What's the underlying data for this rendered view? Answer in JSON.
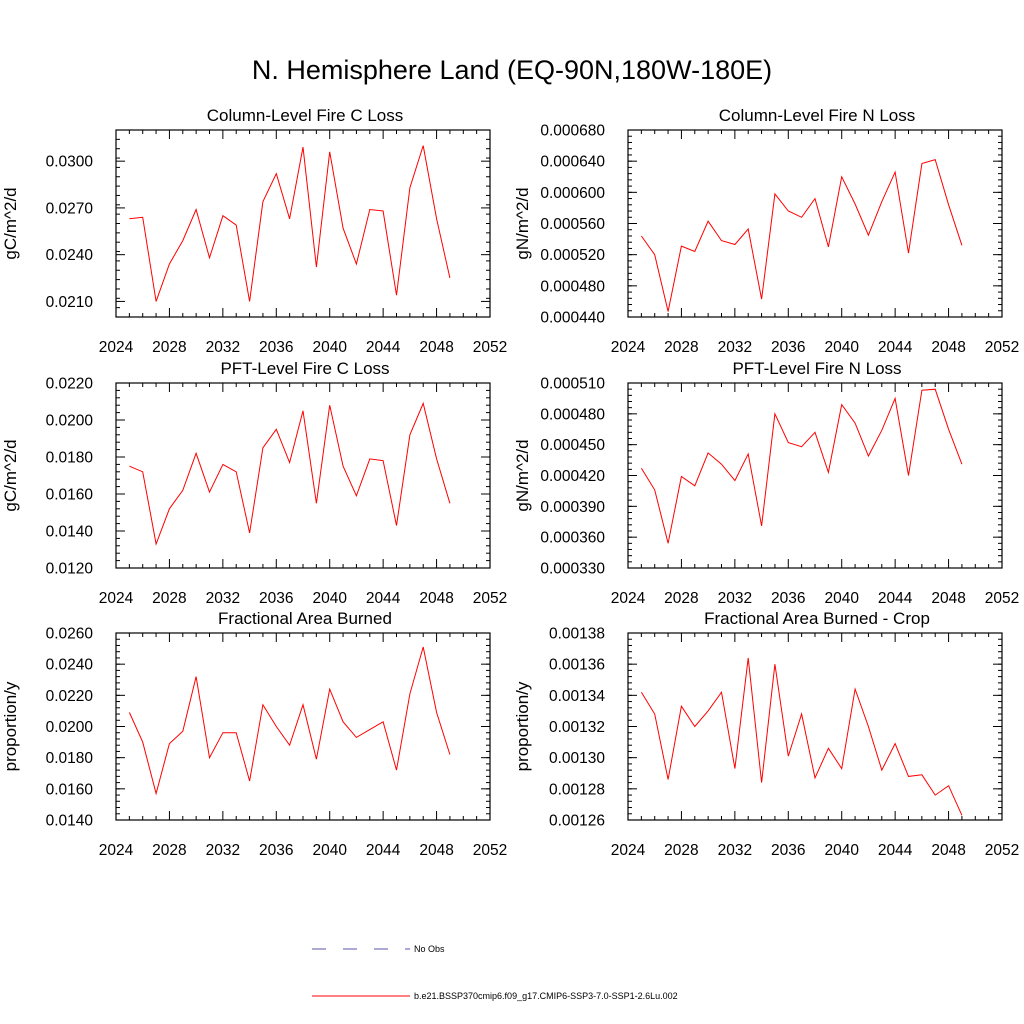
{
  "page": {
    "title": "N. Hemisphere Land (EQ-90N,180W-180E)"
  },
  "chart_data": [
    {
      "type": "line",
      "title": "Column-Level Fire C Loss",
      "ylabel": "gC/m^2/d",
      "xlim": [
        2024,
        2052
      ],
      "xticks": [
        "2024",
        "2028",
        "2032",
        "2036",
        "2040",
        "2044",
        "2048",
        "2052"
      ],
      "ylim": [
        0.02,
        0.032
      ],
      "yticks": [
        "0.0210",
        "0.0240",
        "0.0270",
        "0.0300"
      ],
      "series": [
        {
          "color": "#ff0000",
          "x": [
            2025,
            2026,
            2027,
            2028,
            2029,
            2030,
            2031,
            2032,
            2033,
            2034,
            2035,
            2036,
            2037,
            2038,
            2039,
            2040,
            2041,
            2042,
            2043,
            2044,
            2045,
            2046,
            2047,
            2048,
            2049
          ],
          "values": [
            0.0263,
            0.0264,
            0.021,
            0.0234,
            0.0249,
            0.0269,
            0.0238,
            0.0265,
            0.0259,
            0.021,
            0.0274,
            0.0292,
            0.0263,
            0.0309,
            0.0232,
            0.0306,
            0.0257,
            0.0234,
            0.0269,
            0.0268,
            0.0214,
            0.0283,
            0.031,
            0.0263,
            0.0225
          ]
        }
      ]
    },
    {
      "type": "line",
      "title": "Column-Level Fire N Loss",
      "ylabel": "gN/m^2/d",
      "xlim": [
        2024,
        2052
      ],
      "xticks": [
        "2024",
        "2028",
        "2032",
        "2036",
        "2040",
        "2044",
        "2048",
        "2052"
      ],
      "ylim": [
        0.00044,
        0.00068
      ],
      "yticks": [
        "0.000440",
        "0.000480",
        "0.000520",
        "0.000560",
        "0.000600",
        "0.000640",
        "0.000680"
      ],
      "series": [
        {
          "color": "#ff0000",
          "x": [
            2025,
            2026,
            2027,
            2028,
            2029,
            2030,
            2031,
            2032,
            2033,
            2034,
            2035,
            2036,
            2037,
            2038,
            2039,
            2040,
            2041,
            2042,
            2043,
            2044,
            2045,
            2046,
            2047,
            2048,
            2049
          ],
          "values": [
            0.000544,
            0.00052,
            0.000447,
            0.000531,
            0.000524,
            0.000563,
            0.000538,
            0.000533,
            0.000553,
            0.000463,
            0.000598,
            0.000576,
            0.000568,
            0.000592,
            0.00053,
            0.00062,
            0.000585,
            0.000545,
            0.000588,
            0.000626,
            0.000522,
            0.000637,
            0.000642,
            0.000584,
            0.000532
          ]
        }
      ]
    },
    {
      "type": "line",
      "title": "PFT-Level Fire C Loss",
      "ylabel": "gC/m^2/d",
      "xlim": [
        2024,
        2052
      ],
      "xticks": [
        "2024",
        "2028",
        "2032",
        "2036",
        "2040",
        "2044",
        "2048",
        "2052"
      ],
      "ylim": [
        0.012,
        0.022
      ],
      "yticks": [
        "0.0120",
        "0.0140",
        "0.0160",
        "0.0180",
        "0.0200",
        "0.0220"
      ],
      "series": [
        {
          "color": "#ff0000",
          "x": [
            2025,
            2026,
            2027,
            2028,
            2029,
            2030,
            2031,
            2032,
            2033,
            2034,
            2035,
            2036,
            2037,
            2038,
            2039,
            2040,
            2041,
            2042,
            2043,
            2044,
            2045,
            2046,
            2047,
            2048,
            2049
          ],
          "values": [
            0.0175,
            0.0172,
            0.0133,
            0.0152,
            0.0162,
            0.0182,
            0.0161,
            0.0176,
            0.0172,
            0.0139,
            0.0185,
            0.0195,
            0.0177,
            0.0205,
            0.0155,
            0.0208,
            0.0175,
            0.0159,
            0.0179,
            0.0178,
            0.0143,
            0.0192,
            0.0209,
            0.0179,
            0.0155
          ]
        }
      ]
    },
    {
      "type": "line",
      "title": "PFT-Level Fire N Loss",
      "ylabel": "gN/m^2/d",
      "xlim": [
        2024,
        2052
      ],
      "xticks": [
        "2024",
        "2028",
        "2032",
        "2036",
        "2040",
        "2044",
        "2048",
        "2052"
      ],
      "ylim": [
        0.00033,
        0.00051
      ],
      "yticks": [
        "0.000330",
        "0.000360",
        "0.000390",
        "0.000420",
        "0.000450",
        "0.000480",
        "0.000510"
      ],
      "series": [
        {
          "color": "#ff0000",
          "x": [
            2025,
            2026,
            2027,
            2028,
            2029,
            2030,
            2031,
            2032,
            2033,
            2034,
            2035,
            2036,
            2037,
            2038,
            2039,
            2040,
            2041,
            2042,
            2043,
            2044,
            2045,
            2046,
            2047,
            2048,
            2049
          ],
          "values": [
            0.000427,
            0.000406,
            0.000354,
            0.000419,
            0.00041,
            0.000442,
            0.000431,
            0.000415,
            0.000441,
            0.000371,
            0.00048,
            0.000452,
            0.000448,
            0.000462,
            0.000423,
            0.000489,
            0.000471,
            0.000439,
            0.000464,
            0.000495,
            0.00042,
            0.000503,
            0.000504,
            0.000465,
            0.000431
          ]
        }
      ]
    },
    {
      "type": "line",
      "title": "Fractional Area Burned",
      "ylabel": "proportion/y",
      "xlim": [
        2024,
        2052
      ],
      "xticks": [
        "2024",
        "2028",
        "2032",
        "2036",
        "2040",
        "2044",
        "2048",
        "2052"
      ],
      "ylim": [
        0.014,
        0.026
      ],
      "yticks": [
        "0.0140",
        "0.0160",
        "0.0180",
        "0.0200",
        "0.0220",
        "0.0240",
        "0.0260"
      ],
      "series": [
        {
          "color": "#ff0000",
          "x": [
            2025,
            2026,
            2027,
            2028,
            2029,
            2030,
            2031,
            2032,
            2033,
            2034,
            2035,
            2036,
            2037,
            2038,
            2039,
            2040,
            2041,
            2042,
            2043,
            2044,
            2045,
            2046,
            2047,
            2048,
            2049
          ],
          "values": [
            0.0209,
            0.019,
            0.0157,
            0.0189,
            0.0197,
            0.0232,
            0.018,
            0.0196,
            0.0196,
            0.0165,
            0.0214,
            0.02,
            0.0188,
            0.0214,
            0.0179,
            0.0224,
            0.0203,
            0.0193,
            0.0198,
            0.0203,
            0.0172,
            0.0221,
            0.0251,
            0.0209,
            0.0182
          ]
        }
      ]
    },
    {
      "type": "line",
      "title": "Fractional Area Burned - Crop",
      "ylabel": "proportion/y",
      "xlim": [
        2024,
        2052
      ],
      "xticks": [
        "2024",
        "2028",
        "2032",
        "2036",
        "2040",
        "2044",
        "2048",
        "2052"
      ],
      "ylim": [
        0.00126,
        0.00138
      ],
      "yticks": [
        "0.00126",
        "0.00128",
        "0.00130",
        "0.00132",
        "0.00134",
        "0.00136",
        "0.00138"
      ],
      "series": [
        {
          "color": "#ff0000",
          "x": [
            2025,
            2026,
            2027,
            2028,
            2029,
            2030,
            2031,
            2032,
            2033,
            2034,
            2035,
            2036,
            2037,
            2038,
            2039,
            2040,
            2041,
            2042,
            2043,
            2044,
            2045,
            2046,
            2047,
            2048,
            2049
          ],
          "values": [
            0.001342,
            0.001328,
            0.001286,
            0.001333,
            0.00132,
            0.00133,
            0.001342,
            0.001293,
            0.001364,
            0.001284,
            0.00136,
            0.001301,
            0.001328,
            0.001287,
            0.001306,
            0.001293,
            0.001344,
            0.00132,
            0.001292,
            0.001309,
            0.001288,
            0.001289,
            0.001276,
            0.001282,
            0.001263
          ]
        }
      ]
    }
  ],
  "legend": {
    "items": [
      {
        "label": "No Obs",
        "color": "#5555aa",
        "style": "dashed"
      },
      {
        "label": "b.e21.BSSP370cmip6.f09_g17.CMIP6-SSP3-7.0-SSP1-2.6Lu.002",
        "color": "#ff0000",
        "style": "solid"
      }
    ]
  }
}
